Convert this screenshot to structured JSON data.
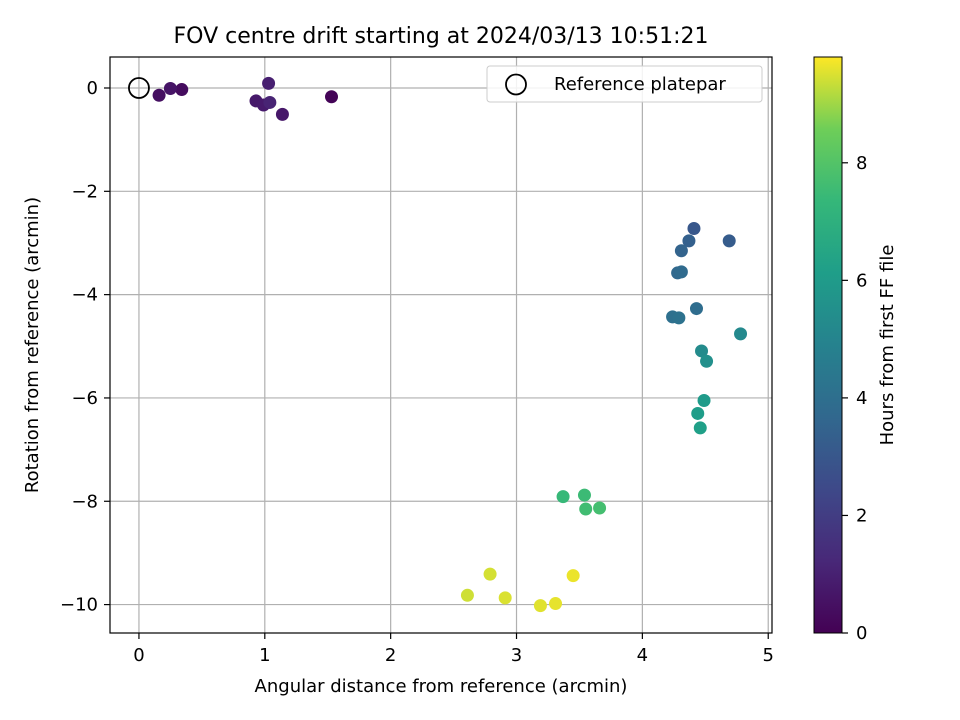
{
  "chart_data": {
    "type": "scatter",
    "title": "FOV centre drift starting at 2024/03/13 10:51:21",
    "xlabel": "Angular distance from reference (arcmin)",
    "ylabel": "Rotation from reference (arcmin)",
    "xlim": [
      -0.23,
      5.03
    ],
    "ylim": [
      -10.55,
      0.6
    ],
    "x_ticks": [
      0,
      1,
      2,
      3,
      4,
      5
    ],
    "y_ticks": [
      0,
      -2,
      -4,
      -6,
      -8,
      -10
    ],
    "x_tick_labels": [
      "0",
      "1",
      "2",
      "3",
      "4",
      "5"
    ],
    "y_tick_labels": [
      "0",
      "−2",
      "−4",
      "−6",
      "−8",
      "−10"
    ],
    "grid": true,
    "legend": {
      "placement": "top-right",
      "entries": [
        "Reference platepar"
      ]
    },
    "reference_point": {
      "x": 0,
      "y": 0
    },
    "colorbar": {
      "label": "Hours from first FF file",
      "range": [
        0,
        9.8
      ],
      "ticks": [
        0,
        2,
        4,
        6,
        8
      ],
      "tick_labels": [
        "0",
        "2",
        "4",
        "6",
        "8"
      ],
      "colormap": "viridis"
    },
    "points": [
      {
        "x": 1.53,
        "y": -0.17,
        "c": 0.1
      },
      {
        "x": 0.34,
        "y": -0.03,
        "c": 0.35
      },
      {
        "x": 0.16,
        "y": -0.14,
        "c": 0.45
      },
      {
        "x": 0.25,
        "y": -0.01,
        "c": 0.6
      },
      {
        "x": 1.14,
        "y": -0.51,
        "c": 0.7
      },
      {
        "x": 0.93,
        "y": -0.25,
        "c": 0.75
      },
      {
        "x": 0.99,
        "y": -0.33,
        "c": 0.8
      },
      {
        "x": 1.03,
        "y": 0.09,
        "c": 0.95
      },
      {
        "x": 1.04,
        "y": -0.28,
        "c": 1.1
      },
      {
        "x": 4.41,
        "y": -2.72,
        "c": 3.0
      },
      {
        "x": 4.69,
        "y": -2.96,
        "c": 3.2
      },
      {
        "x": 4.37,
        "y": -2.96,
        "c": 3.35
      },
      {
        "x": 4.31,
        "y": -3.15,
        "c": 3.5
      },
      {
        "x": 4.28,
        "y": -3.58,
        "c": 3.7
      },
      {
        "x": 4.31,
        "y": -3.56,
        "c": 3.8
      },
      {
        "x": 4.43,
        "y": -4.27,
        "c": 3.9
      },
      {
        "x": 4.24,
        "y": -4.43,
        "c": 4.05
      },
      {
        "x": 4.29,
        "y": -4.45,
        "c": 4.15
      },
      {
        "x": 4.78,
        "y": -4.76,
        "c": 5.2
      },
      {
        "x": 4.47,
        "y": -5.09,
        "c": 5.3
      },
      {
        "x": 4.51,
        "y": -5.29,
        "c": 5.5
      },
      {
        "x": 4.49,
        "y": -6.05,
        "c": 6.0
      },
      {
        "x": 4.44,
        "y": -6.3,
        "c": 6.1
      },
      {
        "x": 4.46,
        "y": -6.58,
        "c": 6.2
      },
      {
        "x": 3.37,
        "y": -7.91,
        "c": 7.4
      },
      {
        "x": 3.54,
        "y": -7.88,
        "c": 7.5
      },
      {
        "x": 3.55,
        "y": -8.15,
        "c": 7.6
      },
      {
        "x": 3.66,
        "y": -8.13,
        "c": 7.7
      },
      {
        "x": 2.61,
        "y": -9.82,
        "c": 9.4
      },
      {
        "x": 2.79,
        "y": -9.41,
        "c": 9.45
      },
      {
        "x": 2.91,
        "y": -9.87,
        "c": 9.5
      },
      {
        "x": 3.19,
        "y": -10.02,
        "c": 9.55
      },
      {
        "x": 3.31,
        "y": -9.98,
        "c": 9.6
      },
      {
        "x": 3.45,
        "y": -9.44,
        "c": 9.65
      }
    ]
  }
}
